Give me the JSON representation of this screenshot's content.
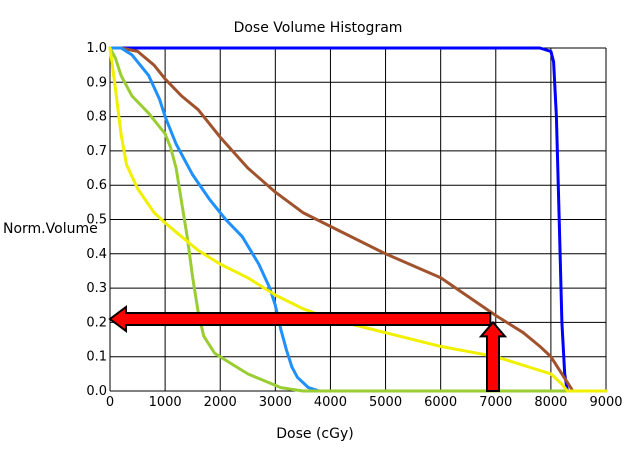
{
  "chart_data": {
    "type": "line",
    "title": "Dose Volume Histogram",
    "xlabel": "Dose (cGy)",
    "ylabel": "Norm.Volume",
    "xlim": [
      0,
      9000
    ],
    "ylim": [
      0,
      1.0
    ],
    "grid": true,
    "x_ticks": [
      "0",
      "1000",
      "2000",
      "3000",
      "4000",
      "5000",
      "6000",
      "7000",
      "8000",
      "9000"
    ],
    "y_ticks": [
      "0.0",
      "0.1",
      "0.2",
      "0.3",
      "0.4",
      "0.5",
      "0.6",
      "0.7",
      "0.8",
      "0.9",
      "1.0"
    ],
    "series": [
      {
        "color": "#0000ff",
        "points": [
          [
            0,
            1.0
          ],
          [
            4000,
            1.0
          ],
          [
            7800,
            1.0
          ],
          [
            8000,
            0.99
          ],
          [
            8050,
            0.96
          ],
          [
            8100,
            0.8
          ],
          [
            8150,
            0.5
          ],
          [
            8200,
            0.2
          ],
          [
            8250,
            0.05
          ],
          [
            8300,
            0.0
          ],
          [
            9000,
            0.0
          ]
        ]
      },
      {
        "color": "#a0522d",
        "points": [
          [
            0,
            1.0
          ],
          [
            200,
            1.0
          ],
          [
            500,
            0.99
          ],
          [
            800,
            0.95
          ],
          [
            1000,
            0.91
          ],
          [
            1300,
            0.86
          ],
          [
            1600,
            0.82
          ],
          [
            2000,
            0.74
          ],
          [
            2500,
            0.65
          ],
          [
            3000,
            0.58
          ],
          [
            3500,
            0.52
          ],
          [
            4000,
            0.48
          ],
          [
            5000,
            0.4
          ],
          [
            6000,
            0.33
          ],
          [
            7000,
            0.22
          ],
          [
            7500,
            0.17
          ],
          [
            7800,
            0.13
          ],
          [
            8000,
            0.1
          ],
          [
            8200,
            0.05
          ],
          [
            8400,
            0.0
          ],
          [
            9000,
            0.0
          ]
        ]
      },
      {
        "color": "#1e90ff",
        "points": [
          [
            0,
            1.0
          ],
          [
            200,
            1.0
          ],
          [
            400,
            0.98
          ],
          [
            700,
            0.92
          ],
          [
            900,
            0.85
          ],
          [
            1000,
            0.8
          ],
          [
            1200,
            0.72
          ],
          [
            1500,
            0.63
          ],
          [
            1800,
            0.56
          ],
          [
            2100,
            0.5
          ],
          [
            2400,
            0.45
          ],
          [
            2700,
            0.37
          ],
          [
            2900,
            0.3
          ],
          [
            3000,
            0.25
          ],
          [
            3100,
            0.18
          ],
          [
            3200,
            0.12
          ],
          [
            3300,
            0.07
          ],
          [
            3400,
            0.04
          ],
          [
            3600,
            0.01
          ],
          [
            3800,
            0.0
          ],
          [
            9000,
            0.0
          ]
        ]
      },
      {
        "color": "#9acd32",
        "points": [
          [
            0,
            1.0
          ],
          [
            100,
            0.97
          ],
          [
            200,
            0.92
          ],
          [
            400,
            0.86
          ],
          [
            700,
            0.81
          ],
          [
            1000,
            0.75
          ],
          [
            1100,
            0.71
          ],
          [
            1200,
            0.65
          ],
          [
            1300,
            0.55
          ],
          [
            1400,
            0.45
          ],
          [
            1500,
            0.33
          ],
          [
            1600,
            0.23
          ],
          [
            1700,
            0.16
          ],
          [
            1900,
            0.11
          ],
          [
            2200,
            0.08
          ],
          [
            2500,
            0.05
          ],
          [
            2800,
            0.03
          ],
          [
            3100,
            0.01
          ],
          [
            3500,
            0.0
          ],
          [
            9000,
            0.0
          ]
        ]
      },
      {
        "color": "#f0f000",
        "points": [
          [
            0,
            1.0
          ],
          [
            100,
            0.88
          ],
          [
            200,
            0.75
          ],
          [
            300,
            0.66
          ],
          [
            500,
            0.59
          ],
          [
            800,
            0.52
          ],
          [
            1000,
            0.49
          ],
          [
            1300,
            0.45
          ],
          [
            1600,
            0.41
          ],
          [
            2000,
            0.37
          ],
          [
            2500,
            0.33
          ],
          [
            3000,
            0.28
          ],
          [
            3500,
            0.24
          ],
          [
            4000,
            0.21
          ],
          [
            5000,
            0.17
          ],
          [
            6000,
            0.13
          ],
          [
            7000,
            0.1
          ],
          [
            7600,
            0.07
          ],
          [
            8000,
            0.05
          ],
          [
            8200,
            0.02
          ],
          [
            8300,
            0.0
          ],
          [
            9000,
            0.0
          ]
        ]
      }
    ],
    "annotations": [
      {
        "type": "arrow",
        "direction": "up",
        "color": "#ff0000",
        "x": 6950,
        "from_y": 0.0,
        "to_y": 0.2
      },
      {
        "type": "arrow",
        "direction": "left",
        "color": "#ff0000",
        "y": 0.21,
        "from_x": 6900,
        "to_x": 0
      }
    ]
  }
}
